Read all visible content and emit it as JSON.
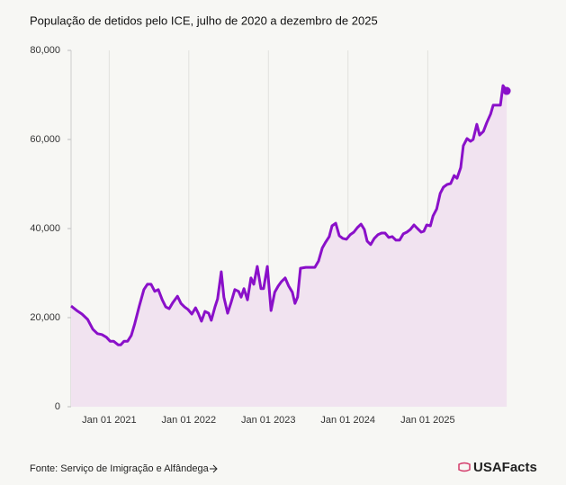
{
  "chart_data": {
    "type": "line",
    "title": "População de detidos pelo ICE, julho de 2020 a dezembro de 2025",
    "source": "Fonte: Serviço de Imigração e Alfândega",
    "brand": "USAFacts",
    "color": "#8a10c9",
    "area_color": "#f1e3f0",
    "area": true,
    "end_marker": true,
    "x_grid": true,
    "x": [
      "2020-07-10",
      "2020-08-05",
      "2020-08-29",
      "2020-09-24",
      "2020-10-18",
      "2020-11-08",
      "2020-11-28",
      "2020-12-19",
      "2021-01-05",
      "2021-01-21",
      "2021-02-11",
      "2021-02-23",
      "2021-03-10",
      "2021-03-26",
      "2021-04-12",
      "2021-04-28",
      "2021-05-19",
      "2021-06-09",
      "2021-06-25",
      "2021-07-12",
      "2021-07-29",
      "2021-08-14",
      "2021-09-01",
      "2021-09-17",
      "2021-10-03",
      "2021-10-20",
      "2021-11-10",
      "2021-11-26",
      "2021-12-12",
      "2021-12-29",
      "2022-01-15",
      "2022-02-01",
      "2022-02-13",
      "2022-02-28",
      "2022-03-16",
      "2022-04-02",
      "2022-04-14",
      "2022-05-01",
      "2022-05-13",
      "2022-05-30",
      "2022-06-11",
      "2022-06-28",
      "2022-07-14",
      "2022-07-31",
      "2022-08-17",
      "2022-08-29",
      "2022-09-11",
      "2022-09-27",
      "2022-10-13",
      "2022-10-26",
      "2022-11-11",
      "2022-11-28",
      "2022-12-10",
      "2022-12-27",
      "2023-01-13",
      "2023-01-30",
      "2023-02-15",
      "2023-03-02",
      "2023-03-19",
      "2023-04-04",
      "2023-04-21",
      "2023-05-03",
      "2023-05-15",
      "2023-05-28",
      "2023-06-22",
      "2023-07-12",
      "2023-08-02",
      "2023-08-19",
      "2023-09-05",
      "2023-09-21",
      "2023-10-07",
      "2023-10-20",
      "2023-11-06",
      "2023-11-22",
      "2023-12-08",
      "2023-12-25",
      "2024-01-11",
      "2024-01-28",
      "2024-02-13",
      "2024-03-01",
      "2024-03-16",
      "2024-03-29",
      "2024-04-14",
      "2024-05-01",
      "2024-05-17",
      "2024-06-03",
      "2024-06-19",
      "2024-07-06",
      "2024-07-22",
      "2024-08-08",
      "2024-08-25",
      "2024-09-11",
      "2024-09-27",
      "2024-10-13",
      "2024-10-30",
      "2024-11-15",
      "2024-12-02",
      "2024-12-14",
      "2024-12-27",
      "2025-01-13",
      "2025-01-25",
      "2025-02-11",
      "2025-02-27",
      "2025-03-14",
      "2025-03-31",
      "2025-04-16",
      "2025-05-02",
      "2025-05-15",
      "2025-06-01",
      "2025-06-13",
      "2025-06-30",
      "2025-07-16",
      "2025-07-28",
      "2025-08-14",
      "2025-08-27",
      "2025-09-13",
      "2025-09-29",
      "2025-10-16",
      "2025-10-28",
      "2025-11-14",
      "2025-11-30",
      "2025-12-12",
      "2025-12-29"
    ],
    "values": [
      22600,
      21600,
      20800,
      19600,
      17400,
      16400,
      16200,
      15600,
      14700,
      14700,
      13900,
      13900,
      14700,
      14700,
      16000,
      18600,
      22600,
      26300,
      27500,
      27500,
      25900,
      26300,
      24000,
      22400,
      22000,
      23400,
      24800,
      23200,
      22400,
      21800,
      20800,
      22200,
      21000,
      19200,
      21400,
      21000,
      19400,
      22400,
      24200,
      30300,
      24600,
      21000,
      23400,
      26300,
      25900,
      24600,
      26500,
      24000,
      28900,
      27500,
      31500,
      26500,
      26500,
      31500,
      21600,
      25700,
      27100,
      28100,
      28900,
      27100,
      25700,
      23200,
      24600,
      31100,
      31300,
      31300,
      31300,
      32700,
      35600,
      37000,
      38200,
      40600,
      41200,
      38400,
      37800,
      37600,
      38600,
      39200,
      40200,
      41000,
      39800,
      37200,
      36400,
      37800,
      38600,
      39000,
      39000,
      38000,
      38200,
      37400,
      37400,
      38800,
      39200,
      39800,
      40800,
      40000,
      39200,
      39400,
      40800,
      40600,
      42800,
      44400,
      47900,
      49300,
      49900,
      50100,
      51900,
      51300,
      53700,
      58600,
      60200,
      59600,
      60000,
      63400,
      61000,
      61800,
      63800,
      65700,
      67700,
      67700,
      67700,
      72100,
      70900
    ],
    "xlim": [
      "2020-07-10",
      "2026-01-10"
    ],
    "xticks": [
      {
        "value": "2021-01-01",
        "label": "Jan 01 2021"
      },
      {
        "value": "2022-01-01",
        "label": "Jan 01 2022"
      },
      {
        "value": "2023-01-01",
        "label": "Jan 01 2023"
      },
      {
        "value": "2024-01-01",
        "label": "Jan 01 2024"
      },
      {
        "value": "2025-01-01",
        "label": "Jan 01 2025"
      }
    ],
    "ylim": [
      0,
      80000
    ],
    "yticks": [
      0,
      {
        "value": 20000,
        "label": "20,000"
      },
      {
        "value": 40000,
        "label": "40,000"
      },
      {
        "value": 60000,
        "label": "60,000"
      },
      {
        "value": 80000,
        "label": "80,000"
      }
    ]
  }
}
